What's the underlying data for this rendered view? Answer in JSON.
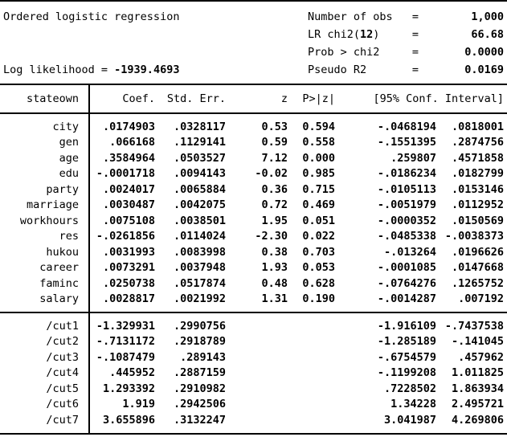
{
  "title": "Ordered logistic regression",
  "log_likelihood": {
    "prefix": "Log likelihood = ",
    "value": "-1939.4693"
  },
  "stats": [
    {
      "label_pre": "Number of obs",
      "label_bold": "",
      "label_post": "",
      "eq": "=",
      "value": "1,000"
    },
    {
      "label_pre": "LR chi2(",
      "label_bold": "12",
      "label_post": ")",
      "eq": "=",
      "value": "66.68"
    },
    {
      "label_pre": "Prob > chi2",
      "label_bold": "",
      "label_post": "",
      "eq": "=",
      "value": "0.0000"
    },
    {
      "label_pre": "Pseudo R2",
      "label_bold": "",
      "label_post": "",
      "eq": "=",
      "value": "0.0169"
    }
  ],
  "table": {
    "headers": {
      "depvar": "stateown",
      "coef": "Coef.",
      "se": "Std. Err.",
      "z": "z",
      "p": "P>|z|",
      "ci": "[95% Conf. Interval]"
    },
    "rows": [
      {
        "var": "city",
        "coef": ".0174903",
        "se": ".0328117",
        "z": "0.53",
        "p": "0.594",
        "ci_low": "-.0468194",
        "ci_high": ".0818001"
      },
      {
        "var": "gen",
        "coef": ".066168",
        "se": ".1129141",
        "z": "0.59",
        "p": "0.558",
        "ci_low": "-.1551395",
        "ci_high": ".2874756"
      },
      {
        "var": "age",
        "coef": ".3584964",
        "se": ".0503527",
        "z": "7.12",
        "p": "0.000",
        "ci_low": ".259807",
        "ci_high": ".4571858"
      },
      {
        "var": "edu",
        "coef": "-.0001718",
        "se": ".0094143",
        "z": "-0.02",
        "p": "0.985",
        "ci_low": "-.0186234",
        "ci_high": ".0182799"
      },
      {
        "var": "party",
        "coef": ".0024017",
        "se": ".0065884",
        "z": "0.36",
        "p": "0.715",
        "ci_low": "-.0105113",
        "ci_high": ".0153146"
      },
      {
        "var": "marriage",
        "coef": ".0030487",
        "se": ".0042075",
        "z": "0.72",
        "p": "0.469",
        "ci_low": "-.0051979",
        "ci_high": ".0112952"
      },
      {
        "var": "workhours",
        "coef": ".0075108",
        "se": ".0038501",
        "z": "1.95",
        "p": "0.051",
        "ci_low": "-.0000352",
        "ci_high": ".0150569"
      },
      {
        "var": "res",
        "coef": "-.0261856",
        "se": ".0114024",
        "z": "-2.30",
        "p": "0.022",
        "ci_low": "-.0485338",
        "ci_high": "-.0038373"
      },
      {
        "var": "hukou",
        "coef": ".0031993",
        "se": ".0083998",
        "z": "0.38",
        "p": "0.703",
        "ci_low": "-.013264",
        "ci_high": ".0196626"
      },
      {
        "var": "career",
        "coef": ".0073291",
        "se": ".0037948",
        "z": "1.93",
        "p": "0.053",
        "ci_low": "-.0001085",
        "ci_high": ".0147668"
      },
      {
        "var": "faminc",
        "coef": ".0250738",
        "se": ".0517874",
        "z": "0.48",
        "p": "0.628",
        "ci_low": "-.0764276",
        "ci_high": ".1265752"
      },
      {
        "var": "salary",
        "coef": ".0028817",
        "se": ".0021992",
        "z": "1.31",
        "p": "0.190",
        "ci_low": "-.0014287",
        "ci_high": ".007192"
      }
    ],
    "cuts": [
      {
        "var": "/cut1",
        "coef": "-1.329931",
        "se": ".2990756",
        "z": "",
        "p": "",
        "ci_low": "-1.916109",
        "ci_high": "-.7437538"
      },
      {
        "var": "/cut2",
        "coef": "-.7131172",
        "se": ".2918789",
        "z": "",
        "p": "",
        "ci_low": "-1.285189",
        "ci_high": "-.141045"
      },
      {
        "var": "/cut3",
        "coef": "-.1087479",
        "se": ".289143",
        "z": "",
        "p": "",
        "ci_low": "-.6754579",
        "ci_high": ".457962"
      },
      {
        "var": "/cut4",
        "coef": ".445952",
        "se": ".2887159",
        "z": "",
        "p": "",
        "ci_low": "-.1199208",
        "ci_high": "1.011825"
      },
      {
        "var": "/cut5",
        "coef": "1.293392",
        "se": ".2910982",
        "z": "",
        "p": "",
        "ci_low": ".7228502",
        "ci_high": "1.863934"
      },
      {
        "var": "/cut6",
        "coef": "1.919",
        "se": ".2942506",
        "z": "",
        "p": "",
        "ci_low": "1.34228",
        "ci_high": "2.495721"
      },
      {
        "var": "/cut7",
        "coef": "3.655896",
        "se": ".3132247",
        "z": "",
        "p": "",
        "ci_low": "3.041987",
        "ci_high": "4.269806"
      }
    ]
  }
}
